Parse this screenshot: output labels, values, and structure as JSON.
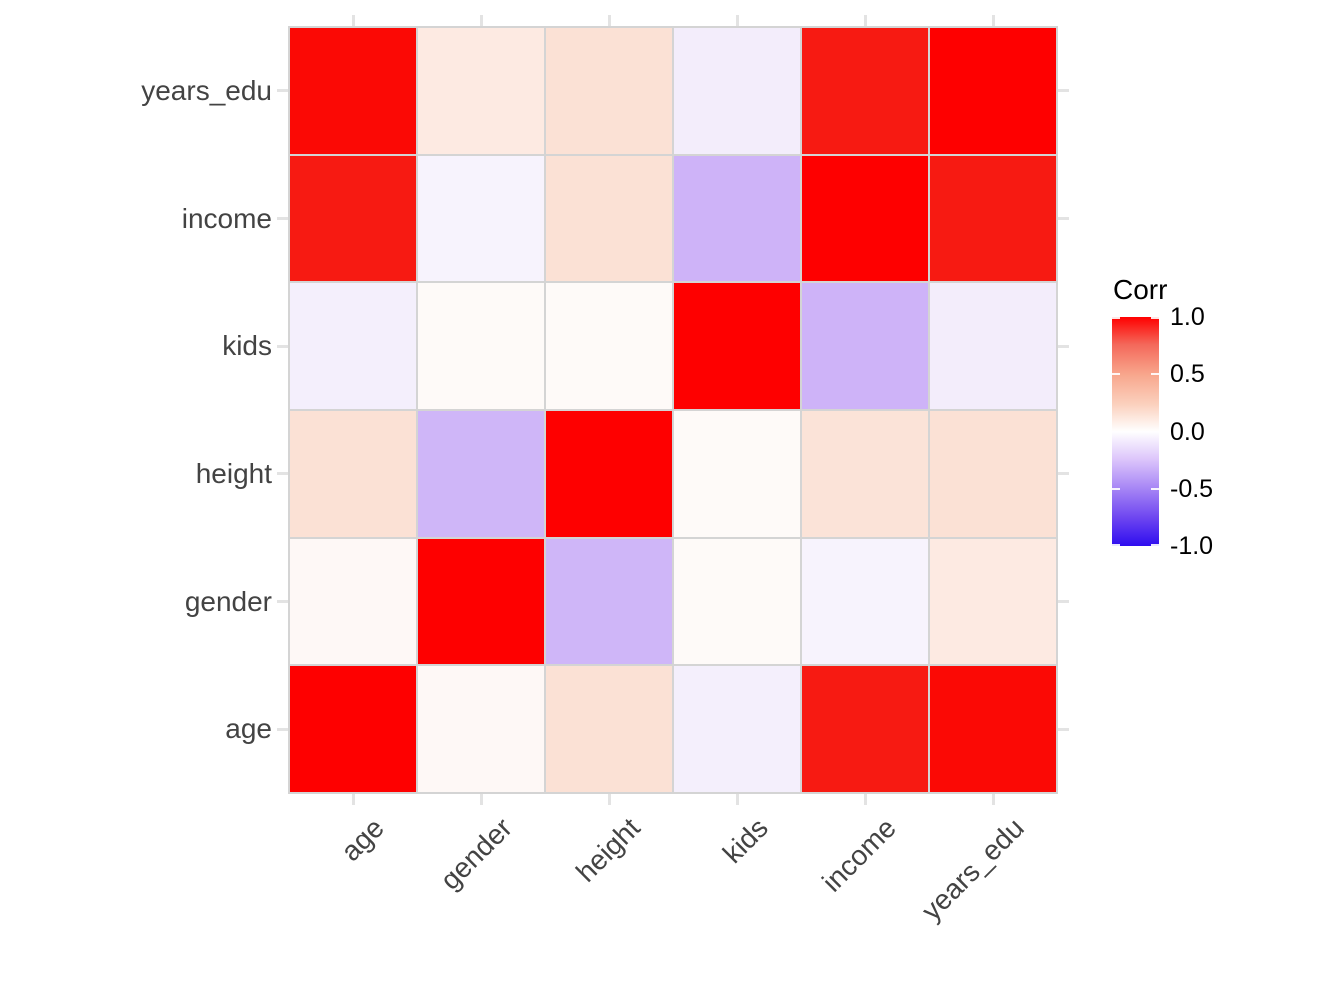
{
  "chart_data": {
    "type": "heatmap",
    "title": "",
    "x_categories": [
      "age",
      "gender",
      "height",
      "kids",
      "income",
      "years_edu"
    ],
    "y_categories_top_to_bottom": [
      "years_edu",
      "income",
      "kids",
      "height",
      "gender",
      "age"
    ],
    "values_rows_top_to_bottom": [
      [
        0.97,
        0.08,
        0.12,
        -0.05,
        0.91,
        1.0
      ],
      [
        0.91,
        -0.03,
        0.12,
        -0.29,
        1.0,
        0.91
      ],
      [
        -0.04,
        0.01,
        0.01,
        1.0,
        -0.29,
        -0.05
      ],
      [
        0.12,
        -0.27,
        1.0,
        0.01,
        0.12,
        0.12
      ],
      [
        0.02,
        1.0,
        -0.27,
        0.01,
        -0.03,
        0.08
      ],
      [
        1.0,
        0.02,
        0.12,
        -0.04,
        0.91,
        0.97
      ]
    ],
    "cell_colors_rows_top_to_bottom": [
      [
        "#fb0905",
        "#fdeae2",
        "#fbe1d5",
        "#f3edfb",
        "#f71a12",
        "#fe0000"
      ],
      [
        "#f71a12",
        "#f7f3fd",
        "#fbe1d5",
        "#ceb3f8",
        "#fe0000",
        "#f71a12"
      ],
      [
        "#f4effc",
        "#fefaf8",
        "#fefaf8",
        "#fe0000",
        "#ceb3f8",
        "#f3edfb"
      ],
      [
        "#fbe1d5",
        "#cfb6f8",
        "#fe0000",
        "#fefaf8",
        "#fbe3d8",
        "#fbe1d5"
      ],
      [
        "#fef8f6",
        "#fe0000",
        "#cfb6f8",
        "#fefaf8",
        "#f7f3fd",
        "#fdeae2"
      ],
      [
        "#fe0000",
        "#fef8f6",
        "#fbe1d5",
        "#f4effc",
        "#f71a12",
        "#fb0905"
      ]
    ],
    "legend": {
      "title": "Corr",
      "tick_labels": [
        "1.0",
        "0.5",
        "0.0",
        "-0.5",
        "-1.0"
      ],
      "tick_values": [
        1,
        0.5,
        0,
        -0.5,
        -1
      ],
      "range": [
        -1,
        1
      ],
      "position": "right",
      "high_color": "#ff0000",
      "mid_color": "#ffffff",
      "low_color": "#2e0def"
    },
    "grid": true,
    "xlabel": "",
    "ylabel": ""
  },
  "styles": {
    "axis_text_color": "#434343",
    "legend_text_color": "#000000",
    "grid_line_color": "#d4d4d4",
    "tick_mark_color": "#e3e3e3",
    "background_color": "#ffffff",
    "diagonal_color": "#fe0000"
  }
}
